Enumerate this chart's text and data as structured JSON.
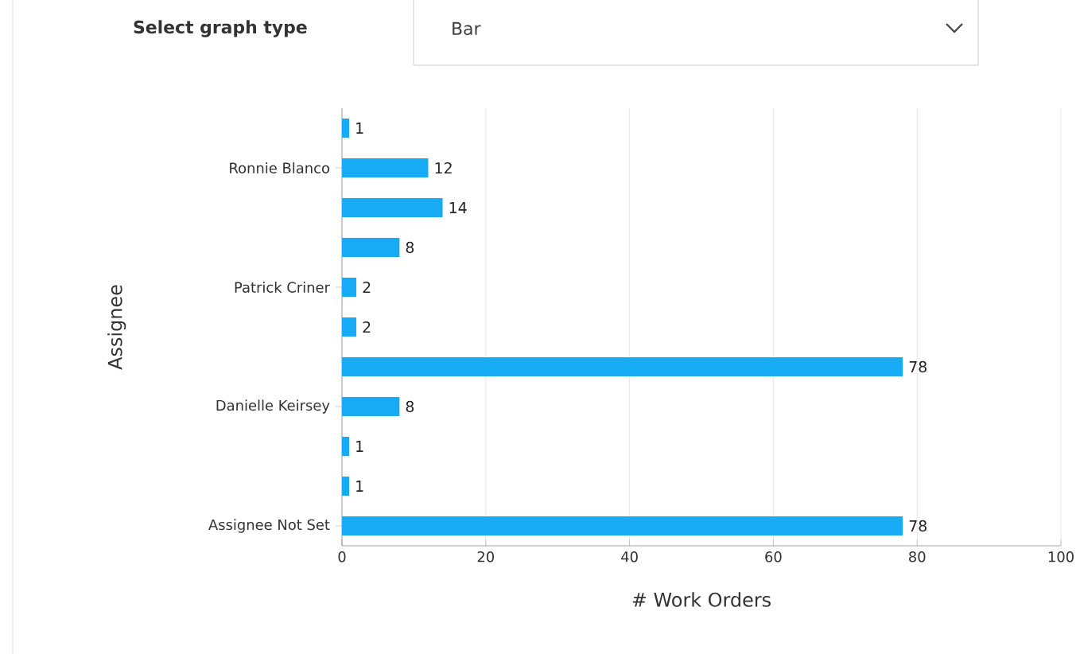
{
  "chart_data": {
    "type": "bar",
    "orientation": "horizontal",
    "xlabel": "# Work Orders",
    "ylabel": "Assignee",
    "annotations": [
      "Select graph type",
      "Bar"
    ],
    "categories": [
      null,
      "Ronnie Blanco",
      null,
      null,
      "Patrick Criner",
      null,
      null,
      "Danielle Keirsey",
      null,
      null,
      "Assignee Not Set"
    ],
    "values": [
      1,
      12,
      14,
      8,
      2,
      2,
      78,
      8,
      1,
      1,
      78
    ],
    "color": "#18abf5",
    "xlim": [
      0,
      100
    ],
    "xticks": [
      0,
      20,
      40,
      60,
      80,
      100
    ],
    "grid": "x",
    "data_labels": true
  }
}
